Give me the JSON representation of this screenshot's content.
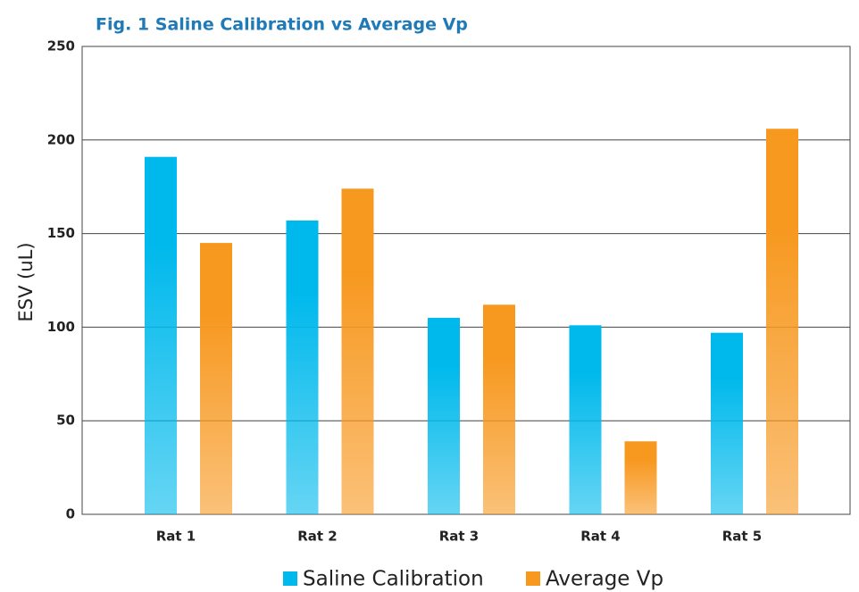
{
  "chart_data": {
    "type": "bar",
    "title": "Fig. 1   Saline Calibration vs Average Vp",
    "y_label": "ESV (uL)",
    "categories": [
      "Rat 1",
      "Rat 2",
      "Rat 3",
      "Rat 4",
      "Rat 5"
    ],
    "series": [
      {
        "name": "Saline Calibration",
        "color": "#00b9ec",
        "values": [
          191,
          157,
          105,
          101,
          97
        ]
      },
      {
        "name": "Average Vp",
        "color": "#f7981f",
        "values": [
          145,
          174,
          112,
          39,
          206
        ]
      }
    ],
    "ylim": [
      0,
      250
    ],
    "yticks": [
      0,
      50,
      100,
      150,
      200,
      250
    ],
    "grid": true,
    "legend": "bottom"
  }
}
